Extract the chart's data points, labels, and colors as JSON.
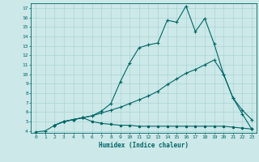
{
  "xlabel": "Humidex (Indice chaleur)",
  "bg_color": "#cce8e8",
  "line_color": "#006666",
  "grid_color": "#aad4d4",
  "xlim": [
    -0.5,
    23.5
  ],
  "ylim": [
    3.8,
    17.5
  ],
  "xticks": [
    0,
    1,
    2,
    3,
    4,
    5,
    6,
    7,
    8,
    9,
    10,
    11,
    12,
    13,
    14,
    15,
    16,
    17,
    18,
    19,
    20,
    21,
    22,
    23
  ],
  "yticks": [
    4,
    5,
    6,
    7,
    8,
    9,
    10,
    11,
    12,
    13,
    14,
    15,
    16,
    17
  ],
  "line1_x": [
    0,
    1,
    2,
    3,
    4,
    5,
    6,
    7,
    8,
    9,
    10,
    11,
    12,
    13,
    14,
    15,
    16,
    17,
    18,
    19,
    20,
    21,
    22,
    23
  ],
  "line1_y": [
    3.9,
    4.0,
    4.6,
    5.0,
    5.2,
    5.4,
    5.6,
    6.1,
    6.9,
    9.2,
    11.2,
    12.8,
    13.1,
    13.3,
    15.7,
    15.5,
    17.2,
    14.5,
    15.9,
    13.2,
    10.0,
    7.5,
    5.8,
    4.2
  ],
  "line2_x": [
    2,
    3,
    4,
    5,
    6,
    7,
    8,
    9,
    10,
    11,
    12,
    13,
    14,
    15,
    16,
    17,
    18,
    19,
    20,
    21,
    22,
    23
  ],
  "line2_y": [
    4.6,
    5.0,
    5.2,
    5.4,
    5.6,
    5.9,
    6.2,
    6.5,
    6.9,
    7.3,
    7.7,
    8.2,
    8.9,
    9.5,
    10.1,
    10.5,
    11.0,
    11.5,
    10.0,
    7.5,
    6.2,
    5.2
  ],
  "line3_x": [
    2,
    3,
    4,
    5,
    6,
    7,
    8,
    9,
    10,
    11,
    12,
    13,
    14,
    15,
    16,
    17,
    18,
    19,
    20,
    21,
    22,
    23
  ],
  "line3_y": [
    4.6,
    5.0,
    5.2,
    5.4,
    5.0,
    4.8,
    4.7,
    4.6,
    4.6,
    4.5,
    4.5,
    4.5,
    4.5,
    4.5,
    4.5,
    4.5,
    4.5,
    4.5,
    4.5,
    4.4,
    4.3,
    4.2
  ]
}
